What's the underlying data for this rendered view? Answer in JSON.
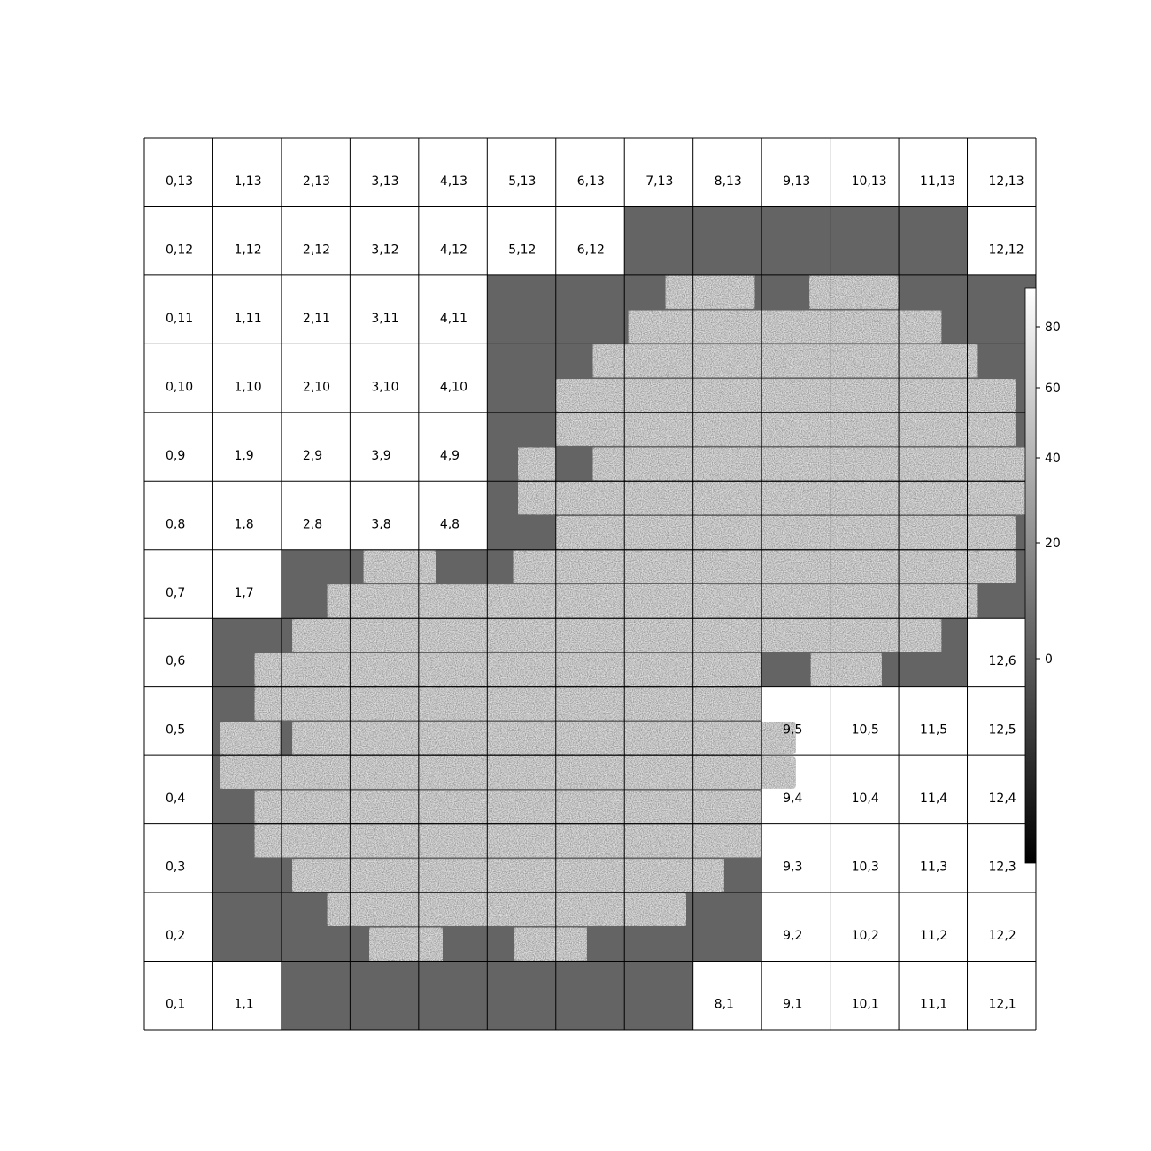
{
  "chart_data": {
    "type": "heatmap",
    "description_of_grid": "13 columns x 13 rows of tiles; labels are column,row",
    "columns": [
      0,
      1,
      2,
      3,
      4,
      5,
      6,
      7,
      8,
      9,
      10,
      11,
      12
    ],
    "rows": [
      1,
      2,
      3,
      4,
      5,
      6,
      7,
      8,
      9,
      10,
      11,
      12,
      13
    ],
    "tiles": [
      {
        "label": "0,13",
        "c": 0,
        "r": 13,
        "state": "blank"
      },
      {
        "label": "1,13",
        "c": 1,
        "r": 13,
        "state": "blank"
      },
      {
        "label": "2,13",
        "c": 2,
        "r": 13,
        "state": "blank"
      },
      {
        "label": "3,13",
        "c": 3,
        "r": 13,
        "state": "blank"
      },
      {
        "label": "4,13",
        "c": 4,
        "r": 13,
        "state": "blank"
      },
      {
        "label": "5,13",
        "c": 5,
        "r": 13,
        "state": "blank"
      },
      {
        "label": "6,13",
        "c": 6,
        "r": 13,
        "state": "blank"
      },
      {
        "label": "7,13",
        "c": 7,
        "r": 13,
        "state": "blank"
      },
      {
        "label": "8,13",
        "c": 8,
        "r": 13,
        "state": "blank"
      },
      {
        "label": "9,13",
        "c": 9,
        "r": 13,
        "state": "blank"
      },
      {
        "label": "10,13",
        "c": 10,
        "r": 13,
        "state": "blank"
      },
      {
        "label": "11,13",
        "c": 11,
        "r": 13,
        "state": "blank"
      },
      {
        "label": "12,13",
        "c": 12,
        "r": 13,
        "state": "blank"
      },
      {
        "label": "0,12",
        "c": 0,
        "r": 12,
        "state": "blank"
      },
      {
        "label": "1,12",
        "c": 1,
        "r": 12,
        "state": "blank"
      },
      {
        "label": "2,12",
        "c": 2,
        "r": 12,
        "state": "blank"
      },
      {
        "label": "3,12",
        "c": 3,
        "r": 12,
        "state": "blank"
      },
      {
        "label": "4,12",
        "c": 4,
        "r": 12,
        "state": "blank"
      },
      {
        "label": "5,12",
        "c": 5,
        "r": 12,
        "state": "blank"
      },
      {
        "label": "6,12",
        "c": 6,
        "r": 12,
        "state": "blank"
      },
      {
        "label": "12,12",
        "c": 12,
        "r": 12,
        "state": "blank"
      },
      {
        "label": "0,11",
        "c": 0,
        "r": 11,
        "state": "blank"
      },
      {
        "label": "1,11",
        "c": 1,
        "r": 11,
        "state": "blank"
      },
      {
        "label": "2,11",
        "c": 2,
        "r": 11,
        "state": "blank"
      },
      {
        "label": "3,11",
        "c": 3,
        "r": 11,
        "state": "blank"
      },
      {
        "label": "4,11",
        "c": 4,
        "r": 11,
        "state": "blank"
      },
      {
        "label": "0,10",
        "c": 0,
        "r": 10,
        "state": "blank"
      },
      {
        "label": "1,10",
        "c": 1,
        "r": 10,
        "state": "blank"
      },
      {
        "label": "2,10",
        "c": 2,
        "r": 10,
        "state": "blank"
      },
      {
        "label": "3,10",
        "c": 3,
        "r": 10,
        "state": "blank"
      },
      {
        "label": "4,10",
        "c": 4,
        "r": 10,
        "state": "blank"
      },
      {
        "label": "0,9",
        "c": 0,
        "r": 9,
        "state": "blank"
      },
      {
        "label": "1,9",
        "c": 1,
        "r": 9,
        "state": "blank"
      },
      {
        "label": "2,9",
        "c": 2,
        "r": 9,
        "state": "blank"
      },
      {
        "label": "3,9",
        "c": 3,
        "r": 9,
        "state": "blank"
      },
      {
        "label": "4,9",
        "c": 4,
        "r": 9,
        "state": "blank"
      },
      {
        "label": "0,8",
        "c": 0,
        "r": 8,
        "state": "blank"
      },
      {
        "label": "1,8",
        "c": 1,
        "r": 8,
        "state": "blank"
      },
      {
        "label": "2,8",
        "c": 2,
        "r": 8,
        "state": "blank"
      },
      {
        "label": "3,8",
        "c": 3,
        "r": 8,
        "state": "blank"
      },
      {
        "label": "4,8",
        "c": 4,
        "r": 8,
        "state": "blank"
      },
      {
        "label": "0,7",
        "c": 0,
        "r": 7,
        "state": "blank"
      },
      {
        "label": "1,7",
        "c": 1,
        "r": 7,
        "state": "blank"
      },
      {
        "label": "0,6",
        "c": 0,
        "r": 6,
        "state": "blank"
      },
      {
        "label": "12,6",
        "c": 12,
        "r": 6,
        "state": "blank"
      },
      {
        "label": "0,5",
        "c": 0,
        "r": 5,
        "state": "blank"
      },
      {
        "label": "9,5",
        "c": 9,
        "r": 5,
        "state": "blank"
      },
      {
        "label": "10,5",
        "c": 10,
        "r": 5,
        "state": "blank"
      },
      {
        "label": "11,5",
        "c": 11,
        "r": 5,
        "state": "blank"
      },
      {
        "label": "12,5",
        "c": 12,
        "r": 5,
        "state": "blank"
      },
      {
        "label": "0,4",
        "c": 0,
        "r": 4,
        "state": "blank"
      },
      {
        "label": "9,4",
        "c": 9,
        "r": 4,
        "state": "blank"
      },
      {
        "label": "10,4",
        "c": 10,
        "r": 4,
        "state": "blank"
      },
      {
        "label": "11,4",
        "c": 11,
        "r": 4,
        "state": "blank"
      },
      {
        "label": "12,4",
        "c": 12,
        "r": 4,
        "state": "blank"
      },
      {
        "label": "0,3",
        "c": 0,
        "r": 3,
        "state": "blank"
      },
      {
        "label": "9,3",
        "c": 9,
        "r": 3,
        "state": "blank"
      },
      {
        "label": "10,3",
        "c": 10,
        "r": 3,
        "state": "blank"
      },
      {
        "label": "11,3",
        "c": 11,
        "r": 3,
        "state": "blank"
      },
      {
        "label": "12,3",
        "c": 12,
        "r": 3,
        "state": "blank"
      },
      {
        "label": "0,2",
        "c": 0,
        "r": 2,
        "state": "blank"
      },
      {
        "label": "9,2",
        "c": 9,
        "r": 2,
        "state": "blank"
      },
      {
        "label": "10,2",
        "c": 10,
        "r": 2,
        "state": "blank"
      },
      {
        "label": "11,2",
        "c": 11,
        "r": 2,
        "state": "blank"
      },
      {
        "label": "12,2",
        "c": 12,
        "r": 2,
        "state": "blank"
      },
      {
        "label": "0,1",
        "c": 0,
        "r": 1,
        "state": "blank"
      },
      {
        "label": "1,1",
        "c": 1,
        "r": 1,
        "state": "blank"
      },
      {
        "label": "8,1",
        "c": 8,
        "r": 1,
        "state": "blank"
      },
      {
        "label": "9,1",
        "c": 9,
        "r": 1,
        "state": "blank"
      },
      {
        "label": "10,1",
        "c": 10,
        "r": 1,
        "state": "blank"
      },
      {
        "label": "11,1",
        "c": 11,
        "r": 1,
        "state": "blank"
      },
      {
        "label": "12,1",
        "c": 12,
        "r": 1,
        "state": "blank"
      }
    ],
    "mosaic_footprints": [
      {
        "name": "upper-right",
        "x_range": [
          5,
          13
        ],
        "y_range": [
          5,
          12
        ],
        "strips": [
          {
            "x": [
              7.6,
              8.9
            ],
            "y": [
              11.5,
              12.0
            ]
          },
          {
            "x": [
              9.7,
              11.0
            ],
            "y": [
              11.5,
              12.0
            ]
          },
          {
            "x": [
              7.06,
              11.62
            ],
            "y": [
              11.0,
              11.5
            ]
          },
          {
            "x": [
              6.54,
              12.15
            ],
            "y": [
              10.5,
              11.0
            ]
          },
          {
            "x": [
              6.0,
              12.7
            ],
            "y": [
              10.0,
              10.5
            ]
          },
          {
            "x": [
              6.0,
              12.7
            ],
            "y": [
              9.5,
              10.0
            ]
          },
          {
            "x": [
              5.45,
              6.0
            ],
            "y": [
              9.0,
              9.5
            ]
          },
          {
            "x": [
              6.54,
              13.0
            ],
            "y": [
              9.0,
              9.5
            ]
          },
          {
            "x": [
              5.45,
              13.0
            ],
            "y": [
              8.5,
              9.0
            ]
          },
          {
            "x": [
              6.0,
              12.7
            ],
            "y": [
              8.0,
              8.5
            ]
          },
          {
            "x": [
              6.0,
              12.7
            ],
            "y": [
              7.5,
              8.0
            ]
          },
          {
            "x": [
              6.54,
              12.15
            ],
            "y": [
              7.0,
              7.5
            ]
          },
          {
            "x": [
              7.06,
              11.62
            ],
            "y": [
              6.5,
              7.0
            ]
          },
          {
            "x": [
              7.6,
              8.6
            ],
            "y": [
              6.0,
              6.5
            ]
          },
          {
            "x": [
              9.72,
              10.75
            ],
            "y": [
              6.0,
              6.5
            ]
          }
        ]
      },
      {
        "name": "lower-left",
        "x_range": [
          1,
          9
        ],
        "y_range": [
          1,
          8
        ],
        "strips": [
          {
            "x": [
              3.2,
              4.25
            ],
            "y": [
              7.5,
              8.0
            ]
          },
          {
            "x": [
              5.38,
              6.4
            ],
            "y": [
              7.5,
              8.0
            ]
          },
          {
            "x": [
              2.67,
              8.2
            ],
            "y": [
              7.0,
              7.5
            ]
          },
          {
            "x": [
              2.16,
              8.74
            ],
            "y": [
              6.5,
              7.0
            ]
          },
          {
            "x": [
              1.61,
              9.0
            ],
            "y": [
              6.0,
              6.5
            ]
          },
          {
            "x": [
              1.61,
              9.0
            ],
            "y": [
              5.5,
              6.0
            ]
          },
          {
            "x": [
              1.1,
              1.98
            ],
            "y": [
              5.0,
              5.5
            ]
          },
          {
            "x": [
              2.16,
              9.5
            ],
            "y": [
              5.0,
              5.5
            ]
          },
          {
            "x": [
              1.1,
              9.5
            ],
            "y": [
              4.5,
              5.0
            ]
          },
          {
            "x": [
              1.61,
              9.0
            ],
            "y": [
              4.0,
              4.5
            ]
          },
          {
            "x": [
              1.61,
              9.0
            ],
            "y": [
              3.5,
              4.0
            ]
          },
          {
            "x": [
              2.16,
              8.45
            ],
            "y": [
              3.0,
              3.5
            ]
          },
          {
            "x": [
              2.67,
              7.9
            ],
            "y": [
              2.5,
              3.0
            ]
          },
          {
            "x": [
              3.28,
              4.35
            ],
            "y": [
              2.0,
              2.5
            ]
          },
          {
            "x": [
              5.4,
              6.45
            ],
            "y": [
              2.0,
              2.5
            ]
          }
        ]
      }
    ],
    "colorbar": {
      "colormap": "gray",
      "ticks": [
        0,
        20,
        40,
        60,
        80
      ],
      "tick_labels": [
        "0",
        "20",
        "40",
        "60",
        "80"
      ],
      "scale": "asinh-like (compressed near 0)"
    },
    "colors": {
      "blank_tile": "#ffffff",
      "background_coverage": "#646464",
      "grid_line": "#000000",
      "strip_low": "#4a4a4a",
      "strip_high": "#f0f0f0"
    }
  }
}
